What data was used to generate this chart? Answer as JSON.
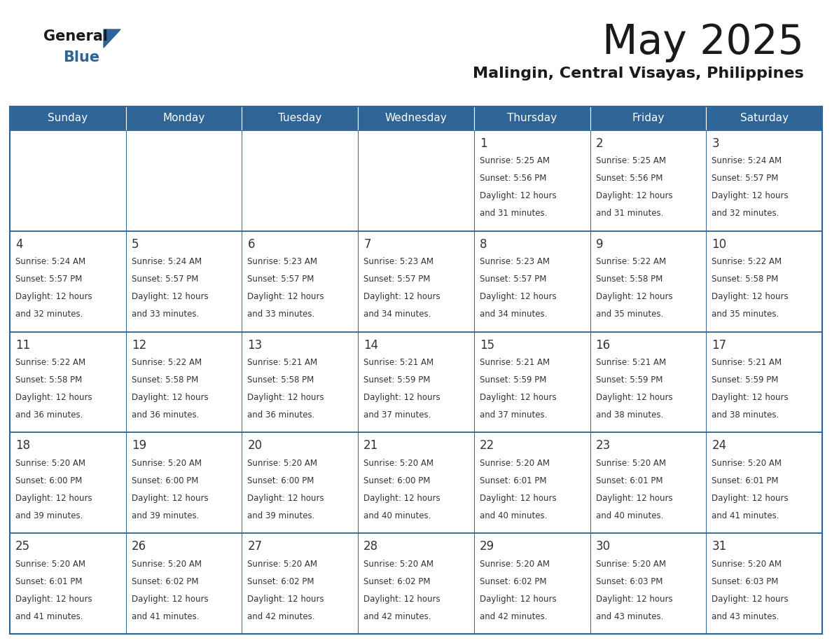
{
  "title": "May 2025",
  "subtitle": "Malingin, Central Visayas, Philippines",
  "days_of_week": [
    "Sunday",
    "Monday",
    "Tuesday",
    "Wednesday",
    "Thursday",
    "Friday",
    "Saturday"
  ],
  "header_bg": "#2E6496",
  "header_text": "#FFFFFF",
  "border_color": "#2E6496",
  "text_color": "#333333",
  "row_colors": [
    "#FFFFFF",
    "#FFFFFF",
    "#FFFFFF",
    "#FFFFFF",
    "#FFFFFF"
  ],
  "calendar": [
    [
      null,
      null,
      null,
      null,
      {
        "day": 1,
        "sunrise": "5:25 AM",
        "sunset": "5:56 PM",
        "daylight": "12 hours",
        "daylight2": "and 31 minutes."
      },
      {
        "day": 2,
        "sunrise": "5:25 AM",
        "sunset": "5:56 PM",
        "daylight": "12 hours",
        "daylight2": "and 31 minutes."
      },
      {
        "day": 3,
        "sunrise": "5:24 AM",
        "sunset": "5:57 PM",
        "daylight": "12 hours",
        "daylight2": "and 32 minutes."
      }
    ],
    [
      {
        "day": 4,
        "sunrise": "5:24 AM",
        "sunset": "5:57 PM",
        "daylight": "12 hours",
        "daylight2": "and 32 minutes."
      },
      {
        "day": 5,
        "sunrise": "5:24 AM",
        "sunset": "5:57 PM",
        "daylight": "12 hours",
        "daylight2": "and 33 minutes."
      },
      {
        "day": 6,
        "sunrise": "5:23 AM",
        "sunset": "5:57 PM",
        "daylight": "12 hours",
        "daylight2": "and 33 minutes."
      },
      {
        "day": 7,
        "sunrise": "5:23 AM",
        "sunset": "5:57 PM",
        "daylight": "12 hours",
        "daylight2": "and 34 minutes."
      },
      {
        "day": 8,
        "sunrise": "5:23 AM",
        "sunset": "5:57 PM",
        "daylight": "12 hours",
        "daylight2": "and 34 minutes."
      },
      {
        "day": 9,
        "sunrise": "5:22 AM",
        "sunset": "5:58 PM",
        "daylight": "12 hours",
        "daylight2": "and 35 minutes."
      },
      {
        "day": 10,
        "sunrise": "5:22 AM",
        "sunset": "5:58 PM",
        "daylight": "12 hours",
        "daylight2": "and 35 minutes."
      }
    ],
    [
      {
        "day": 11,
        "sunrise": "5:22 AM",
        "sunset": "5:58 PM",
        "daylight": "12 hours",
        "daylight2": "and 36 minutes."
      },
      {
        "day": 12,
        "sunrise": "5:22 AM",
        "sunset": "5:58 PM",
        "daylight": "12 hours",
        "daylight2": "and 36 minutes."
      },
      {
        "day": 13,
        "sunrise": "5:21 AM",
        "sunset": "5:58 PM",
        "daylight": "12 hours",
        "daylight2": "and 36 minutes."
      },
      {
        "day": 14,
        "sunrise": "5:21 AM",
        "sunset": "5:59 PM",
        "daylight": "12 hours",
        "daylight2": "and 37 minutes."
      },
      {
        "day": 15,
        "sunrise": "5:21 AM",
        "sunset": "5:59 PM",
        "daylight": "12 hours",
        "daylight2": "and 37 minutes."
      },
      {
        "day": 16,
        "sunrise": "5:21 AM",
        "sunset": "5:59 PM",
        "daylight": "12 hours",
        "daylight2": "and 38 minutes."
      },
      {
        "day": 17,
        "sunrise": "5:21 AM",
        "sunset": "5:59 PM",
        "daylight": "12 hours",
        "daylight2": "and 38 minutes."
      }
    ],
    [
      {
        "day": 18,
        "sunrise": "5:20 AM",
        "sunset": "6:00 PM",
        "daylight": "12 hours",
        "daylight2": "and 39 minutes."
      },
      {
        "day": 19,
        "sunrise": "5:20 AM",
        "sunset": "6:00 PM",
        "daylight": "12 hours",
        "daylight2": "and 39 minutes."
      },
      {
        "day": 20,
        "sunrise": "5:20 AM",
        "sunset": "6:00 PM",
        "daylight": "12 hours",
        "daylight2": "and 39 minutes."
      },
      {
        "day": 21,
        "sunrise": "5:20 AM",
        "sunset": "6:00 PM",
        "daylight": "12 hours",
        "daylight2": "and 40 minutes."
      },
      {
        "day": 22,
        "sunrise": "5:20 AM",
        "sunset": "6:01 PM",
        "daylight": "12 hours",
        "daylight2": "and 40 minutes."
      },
      {
        "day": 23,
        "sunrise": "5:20 AM",
        "sunset": "6:01 PM",
        "daylight": "12 hours",
        "daylight2": "and 40 minutes."
      },
      {
        "day": 24,
        "sunrise": "5:20 AM",
        "sunset": "6:01 PM",
        "daylight": "12 hours",
        "daylight2": "and 41 minutes."
      }
    ],
    [
      {
        "day": 25,
        "sunrise": "5:20 AM",
        "sunset": "6:01 PM",
        "daylight": "12 hours",
        "daylight2": "and 41 minutes."
      },
      {
        "day": 26,
        "sunrise": "5:20 AM",
        "sunset": "6:02 PM",
        "daylight": "12 hours",
        "daylight2": "and 41 minutes."
      },
      {
        "day": 27,
        "sunrise": "5:20 AM",
        "sunset": "6:02 PM",
        "daylight": "12 hours",
        "daylight2": "and 42 minutes."
      },
      {
        "day": 28,
        "sunrise": "5:20 AM",
        "sunset": "6:02 PM",
        "daylight": "12 hours",
        "daylight2": "and 42 minutes."
      },
      {
        "day": 29,
        "sunrise": "5:20 AM",
        "sunset": "6:02 PM",
        "daylight": "12 hours",
        "daylight2": "and 42 minutes."
      },
      {
        "day": 30,
        "sunrise": "5:20 AM",
        "sunset": "6:03 PM",
        "daylight": "12 hours",
        "daylight2": "and 43 minutes."
      },
      {
        "day": 31,
        "sunrise": "5:20 AM",
        "sunset": "6:03 PM",
        "daylight": "12 hours",
        "daylight2": "and 43 minutes."
      }
    ]
  ]
}
